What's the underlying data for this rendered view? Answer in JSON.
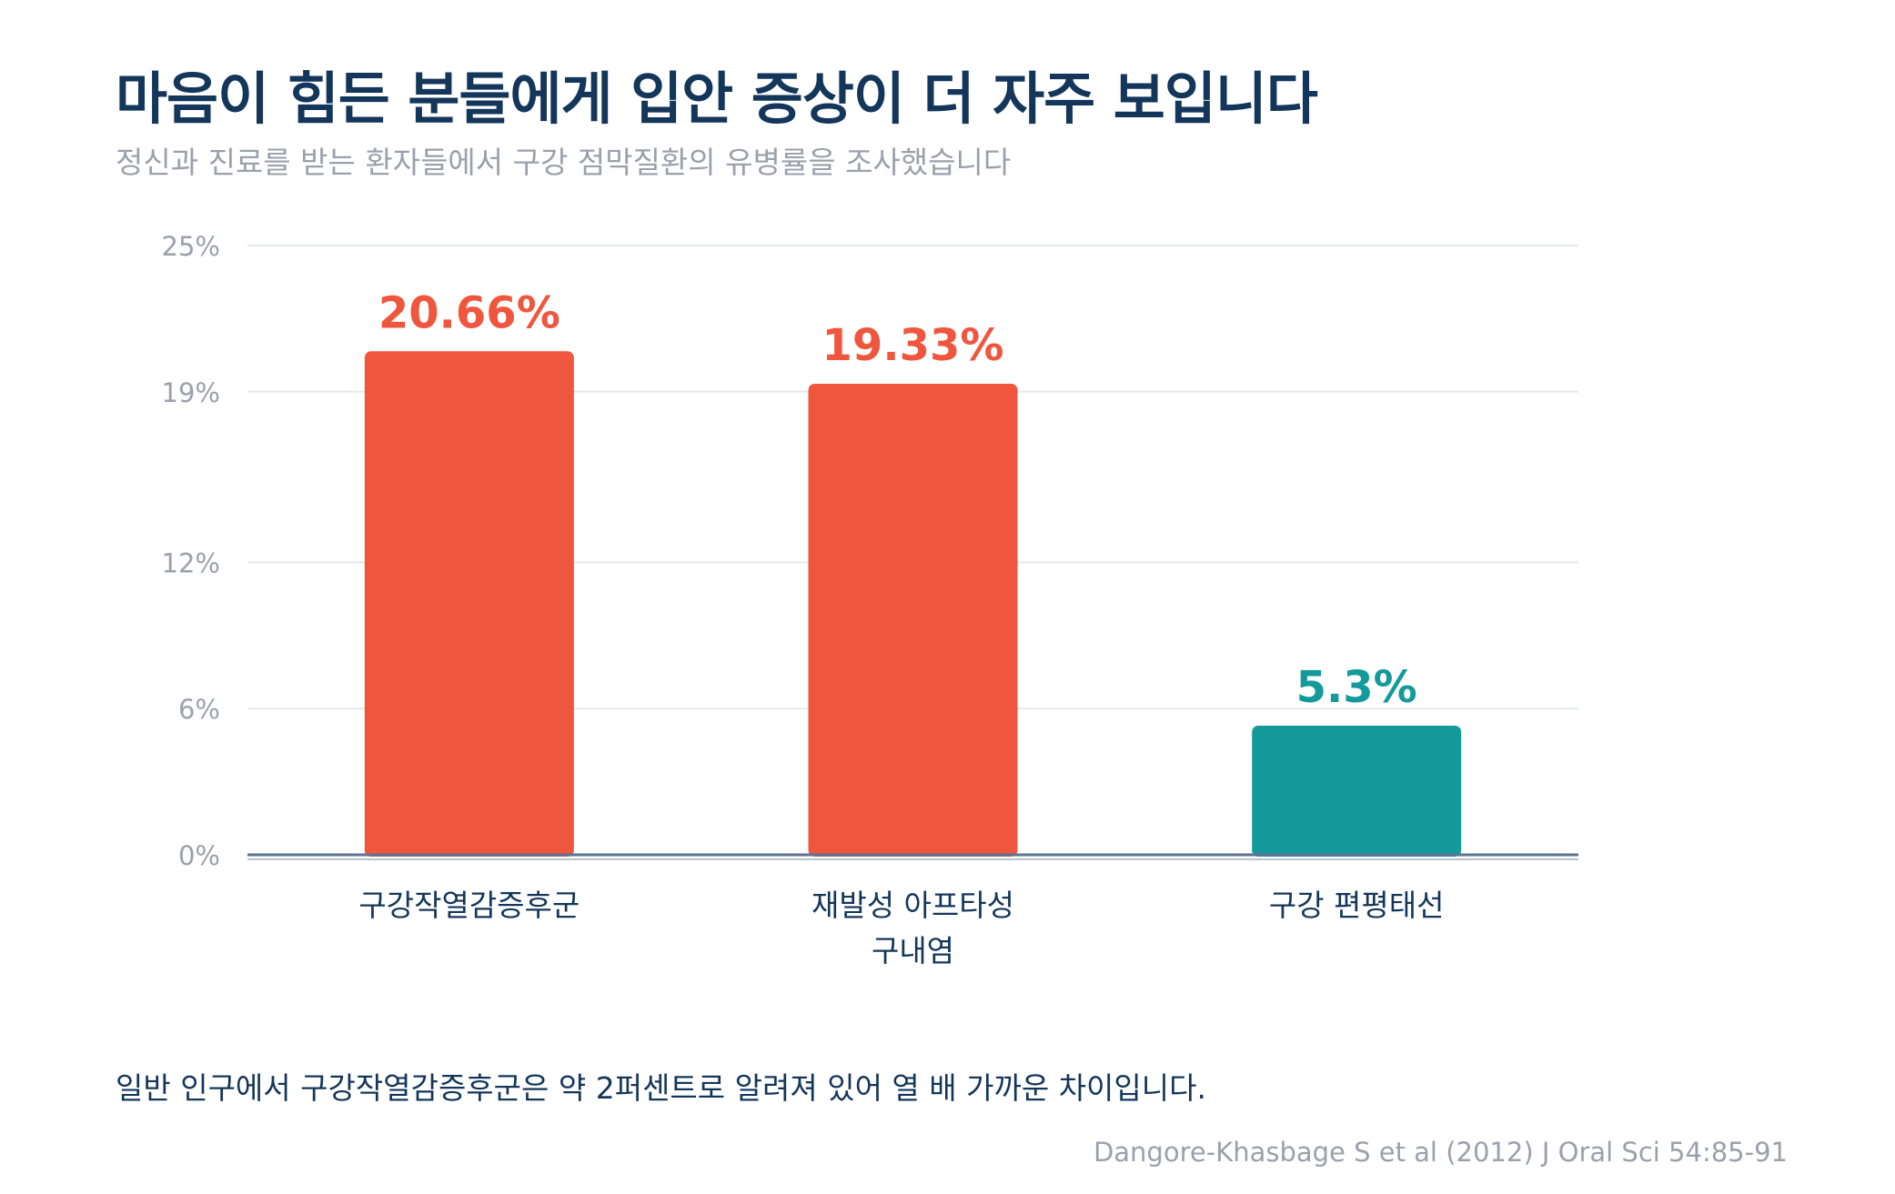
{
  "title": "마음이 힘든 분들에게 입안 증상이 더 자주 보입니다",
  "subtitle": "정신과 진료를 받는 환자들에서 구강 점막질환의 유병률을 조사했습니다",
  "note": "일반 인구에서 구강작열감증후군은 약 2퍼센트로 알려져 있어 열 배 가까운 차이입니다.",
  "source": "Dangore-Khasbage S et al (2012) J Oral Sci 54:85-91",
  "colors": {
    "highlight": "#f0563e",
    "accent": "#159a9c",
    "title": "#14365a",
    "muted": "#9aa1aa",
    "grid": "#e6e8eb",
    "baseline": "#5c7391"
  },
  "chart_data": {
    "type": "bar",
    "categories": [
      [
        "구강작열감증후군"
      ],
      [
        "재발성 아프타성",
        "구내염"
      ],
      [
        "구강 편평태선"
      ]
    ],
    "values": [
      20.66,
      19.33,
      5.3
    ],
    "value_labels": [
      "20.66%",
      "19.33%",
      "5.3%"
    ],
    "bar_colors": [
      "#f0563e",
      "#f0563e",
      "#159a9c"
    ],
    "yticks": [
      0,
      6,
      12,
      19,
      25
    ],
    "ytick_labels": [
      "0%",
      "6%",
      "12%",
      "19%",
      "25%"
    ],
    "ylim": [
      0,
      25
    ],
    "grid": true,
    "legend": "none"
  }
}
